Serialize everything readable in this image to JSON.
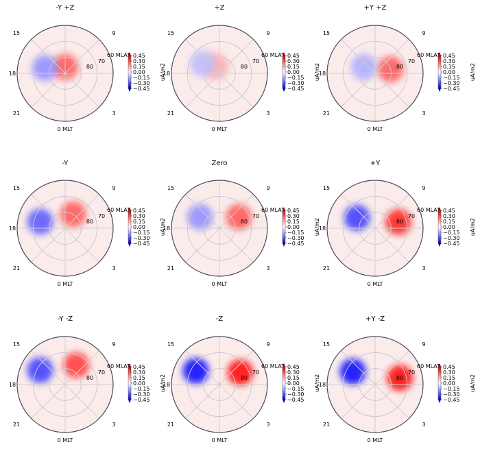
{
  "figure": {
    "mlt_labels": [
      "0 MLT",
      "3",
      "9",
      "15",
      "18",
      "21"
    ],
    "mlat_labels": [
      "60 MLAT",
      "70",
      "80"
    ],
    "colorbar": {
      "label": "uA/m2",
      "ticks": [
        "0.45",
        "0.30",
        "0.15",
        "0.00",
        "−0.15",
        "−0.30",
        "−0.45"
      ],
      "vmin": -0.45,
      "vmax": 0.45,
      "colormap": "bwr",
      "extend": "both"
    }
  },
  "chart_data": [
    {
      "type": "heatmap",
      "projection": "polar",
      "title": "-Y +Z",
      "rlim": [
        60,
        90
      ],
      "features": [
        {
          "sign": "positive",
          "mlt": 12,
          "mlat": 86,
          "value": 0.3
        },
        {
          "sign": "negative",
          "mlt": 17,
          "mlat": 77,
          "value": -0.2
        }
      ]
    },
    {
      "type": "heatmap",
      "projection": "polar",
      "title": "+Z",
      "rlim": [
        60,
        90
      ],
      "features": [
        {
          "sign": "positive",
          "mlt": 14,
          "mlat": 85,
          "value": 0.15
        },
        {
          "sign": "negative",
          "mlt": 16,
          "mlat": 78,
          "value": -0.12
        }
      ]
    },
    {
      "type": "heatmap",
      "projection": "polar",
      "title": "+Y +Z",
      "rlim": [
        60,
        90
      ],
      "features": [
        {
          "sign": "positive",
          "mlt": 7,
          "mlat": 80,
          "value": 0.3
        },
        {
          "sign": "negative",
          "mlt": 16,
          "mlat": 82,
          "value": -0.15
        }
      ]
    },
    {
      "type": "heatmap",
      "projection": "polar",
      "title": "-Y",
      "rlim": [
        60,
        90
      ],
      "features": [
        {
          "sign": "positive",
          "mlt": 10,
          "mlat": 80,
          "value": 0.3
        },
        {
          "sign": "negative",
          "mlt": 17,
          "mlat": 74,
          "value": -0.3
        }
      ]
    },
    {
      "type": "heatmap",
      "projection": "polar",
      "title": "Zero",
      "rlim": [
        60,
        90
      ],
      "features": [
        {
          "sign": "positive",
          "mlt": 8,
          "mlat": 76,
          "value": 0.3
        },
        {
          "sign": "negative",
          "mlt": 16,
          "mlat": 76,
          "value": -0.2
        }
      ]
    },
    {
      "type": "heatmap",
      "projection": "polar",
      "title": "+Y",
      "rlim": [
        60,
        90
      ],
      "features": [
        {
          "sign": "positive",
          "mlt": 7,
          "mlat": 75,
          "value": 0.4
        },
        {
          "sign": "negative",
          "mlt": 16,
          "mlat": 77,
          "value": -0.35
        }
      ]
    },
    {
      "type": "heatmap",
      "projection": "polar",
      "title": "-Y -Z",
      "rlim": [
        60,
        90
      ],
      "features": [
        {
          "sign": "positive",
          "mlt": 10,
          "mlat": 76,
          "value": 0.35
        },
        {
          "sign": "negative",
          "mlt": 16,
          "mlat": 72,
          "value": -0.35
        }
      ]
    },
    {
      "type": "heatmap",
      "projection": "polar",
      "title": "-Z",
      "rlim": [
        60,
        90
      ],
      "features": [
        {
          "sign": "positive",
          "mlt": 8,
          "mlat": 75,
          "value": 0.45
        },
        {
          "sign": "negative",
          "mlt": 16,
          "mlat": 73,
          "value": -0.45
        }
      ]
    },
    {
      "type": "heatmap",
      "projection": "polar",
      "title": "+Y -Z",
      "rlim": [
        60,
        90
      ],
      "features": [
        {
          "sign": "positive",
          "mlt": 7,
          "mlat": 74,
          "value": 0.45
        },
        {
          "sign": "negative",
          "mlt": 16,
          "mlat": 74,
          "value": -0.45
        }
      ]
    }
  ]
}
